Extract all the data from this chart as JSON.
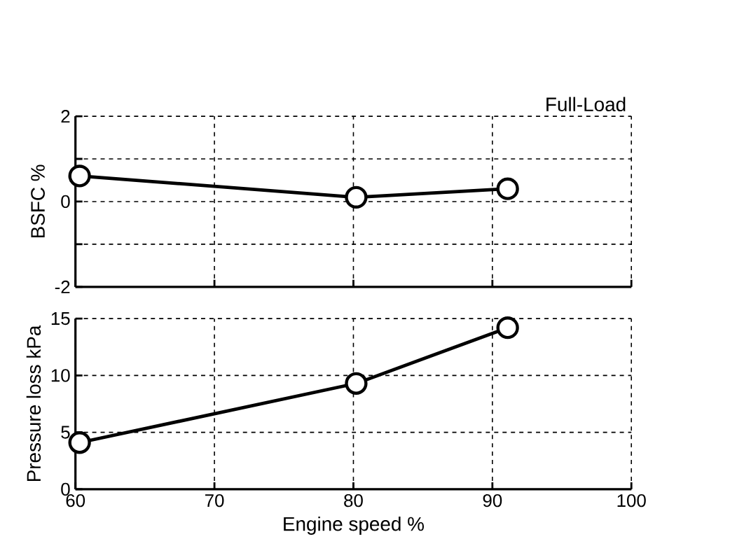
{
  "chart_data": [
    {
      "type": "line",
      "ylabel": "BSFC %",
      "annotations": [
        "Full-Load"
      ],
      "x": [
        60.3,
        80.2,
        91.1
      ],
      "values": [
        0.6,
        0.1,
        0.3
      ],
      "color": "#000000",
      "marker": "circle",
      "line_style": "solid",
      "grid": true,
      "xlim": [
        60,
        100
      ],
      "ylim": [
        -2,
        2
      ],
      "xticks": [
        60,
        70,
        80,
        90,
        100
      ],
      "yticks": [
        -2,
        {
          "value": -1,
          "label": null
        },
        0,
        {
          "value": 1,
          "label": null
        },
        2
      ],
      "tick_labels": "y"
    },
    {
      "type": "line",
      "xlabel": "Engine speed %",
      "ylabel": "Pressure loss kPa",
      "x": [
        60.3,
        80.2,
        91.1
      ],
      "values": [
        4.1,
        9.3,
        14.2
      ],
      "color": "#000000",
      "marker": "circle",
      "line_style": "solid",
      "grid": true,
      "xlim": [
        60,
        100
      ],
      "ylim": [
        0,
        15
      ],
      "xticks": [
        60,
        70,
        80,
        90,
        100
      ],
      "yticks": [
        0,
        5,
        10,
        15
      ]
    }
  ]
}
